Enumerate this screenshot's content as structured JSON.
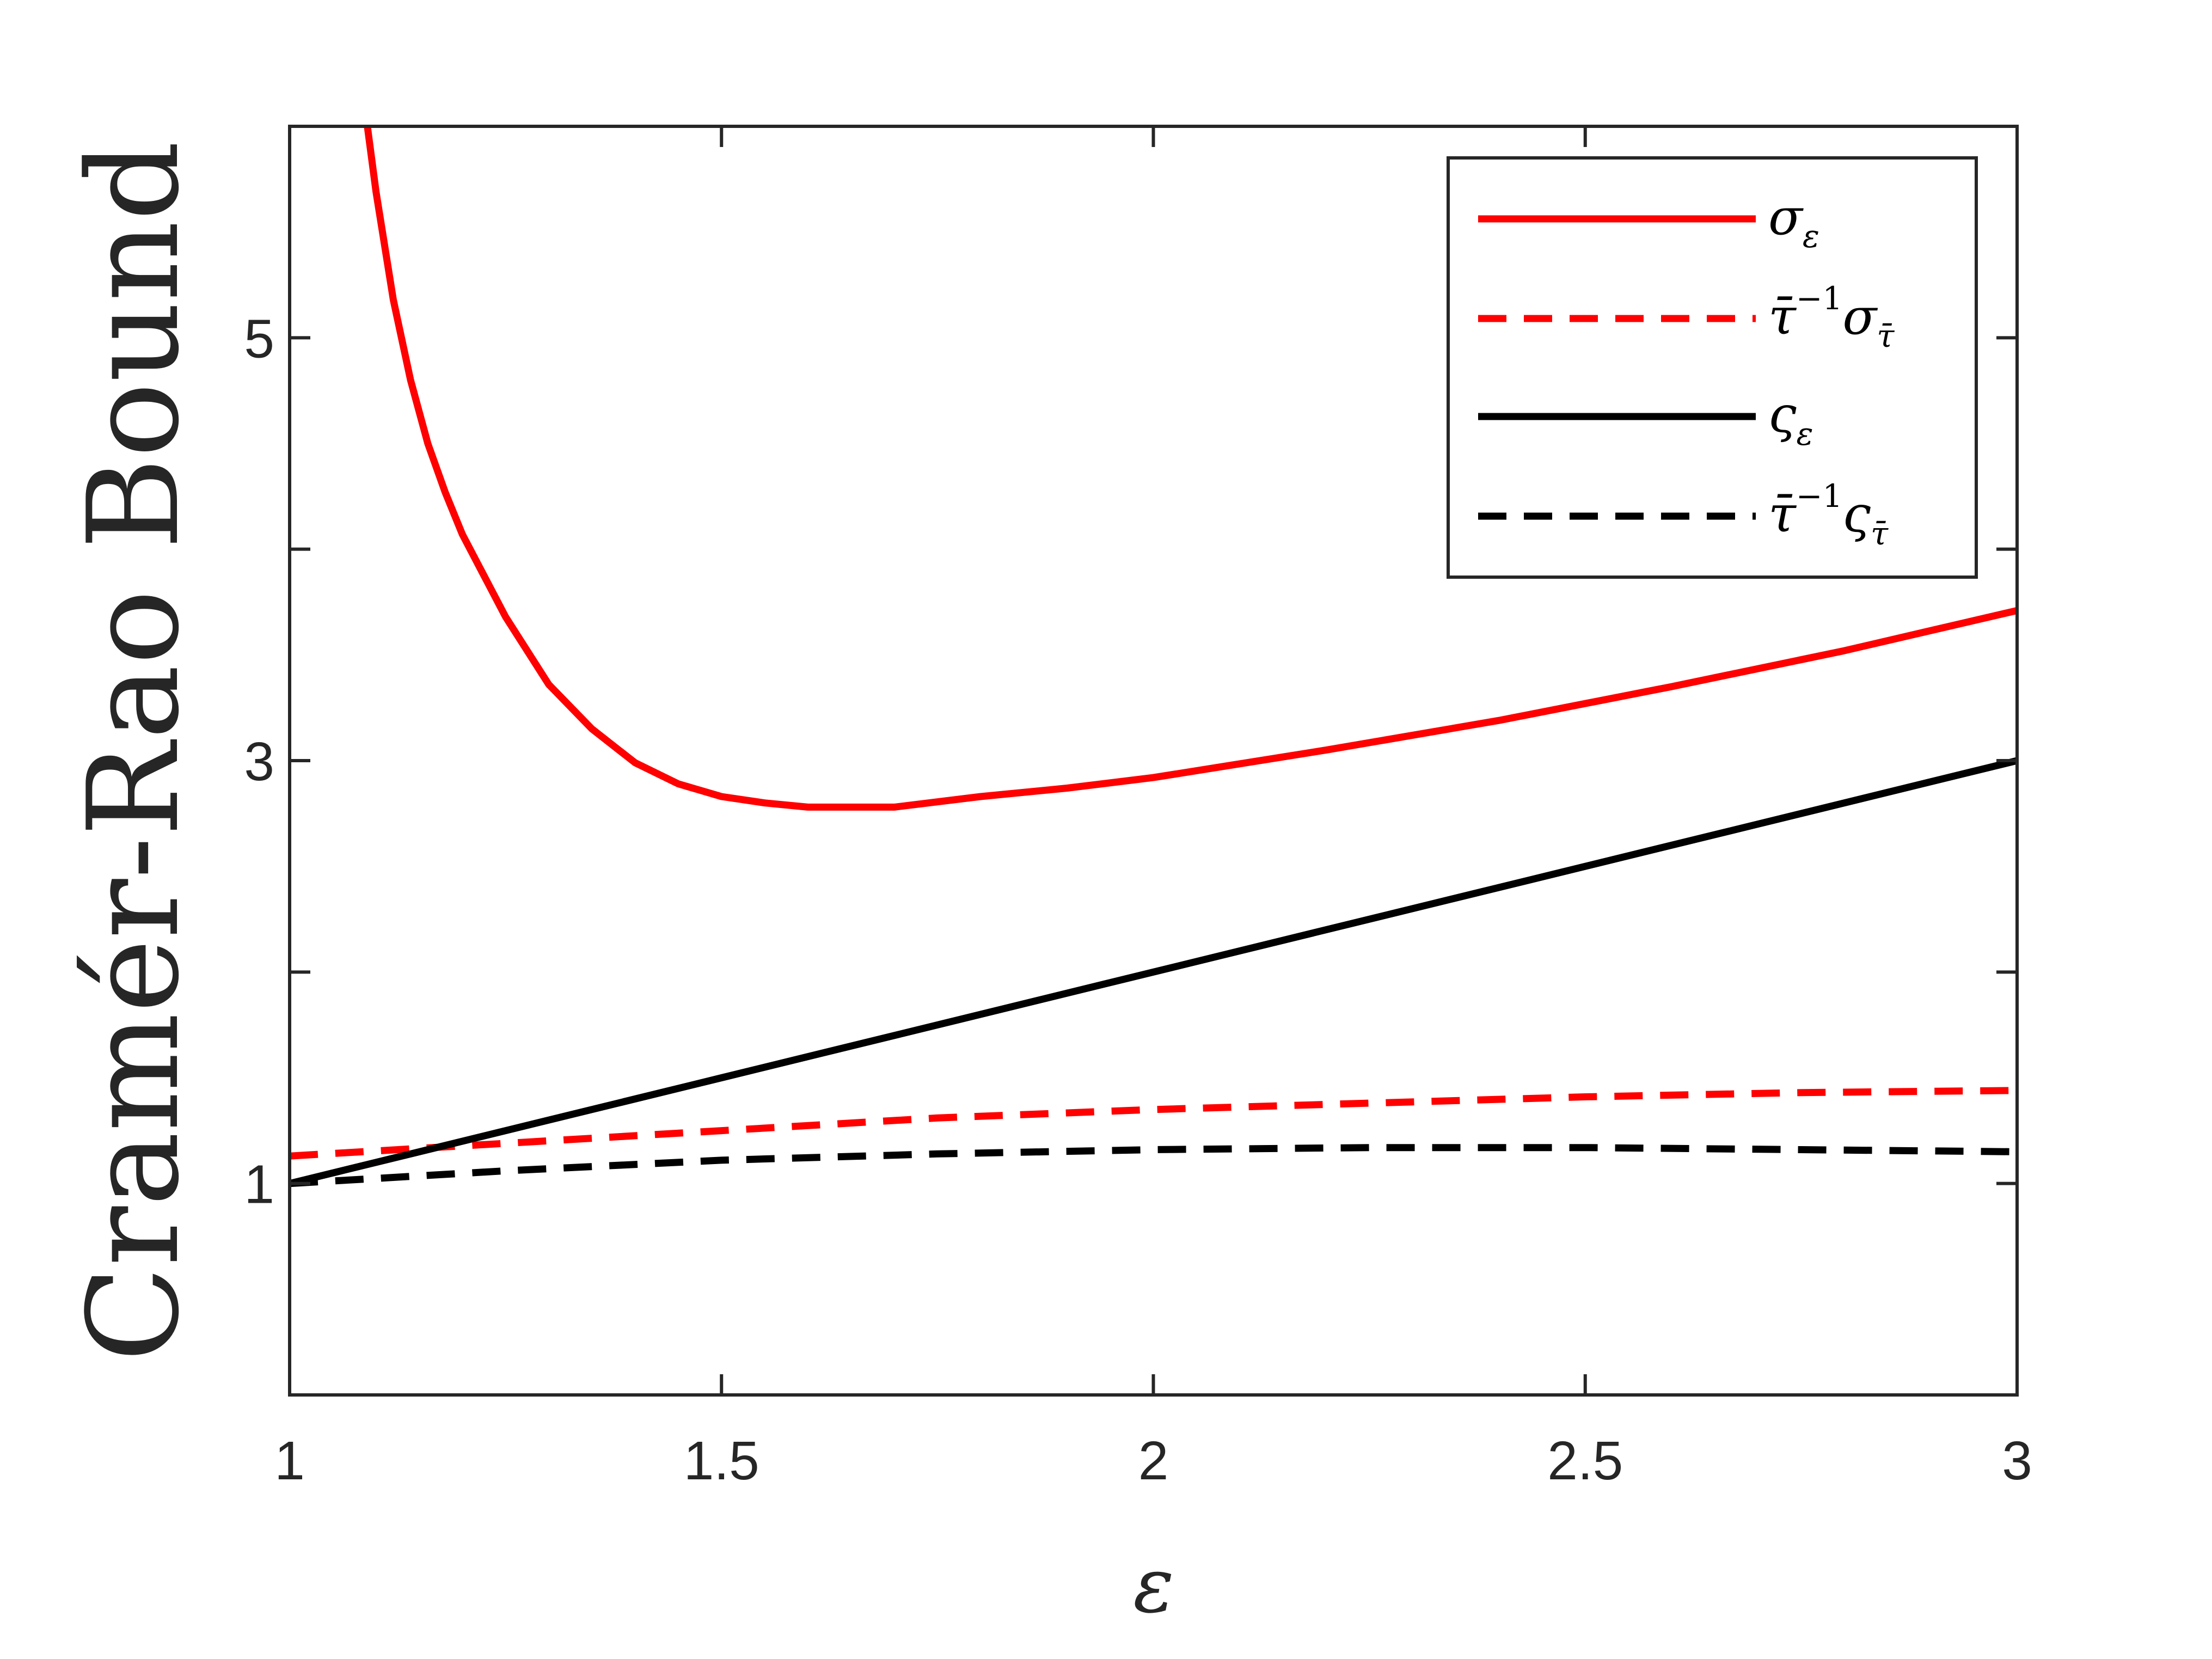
{
  "chart_data": {
    "type": "line",
    "title": "",
    "xlabel": "ε",
    "ylabel": "Cramér-Rao Bound",
    "xlim": [
      1,
      3
    ],
    "ylim": [
      0,
      6
    ],
    "xticks": [
      1,
      1.5,
      2,
      2.5,
      3
    ],
    "xtick_labels": [
      "1",
      "1.5",
      "2",
      "2.5",
      "3"
    ],
    "yticks": [
      1,
      2,
      3,
      4,
      5
    ],
    "ytick_labels": [
      "1",
      "",
      "3",
      "",
      "5"
    ],
    "grid": false,
    "legend_position": "top-right",
    "series": [
      {
        "name": "σ_ε",
        "legend": {
          "base": "σ",
          "sub": "ε",
          "sup": ""
        },
        "color": "#ff0000",
        "dash": "solid",
        "x": [
          1.09,
          1.1,
          1.12,
          1.14,
          1.16,
          1.18,
          1.2,
          1.25,
          1.3,
          1.35,
          1.4,
          1.45,
          1.5,
          1.55,
          1.6,
          1.65,
          1.7,
          1.8,
          1.9,
          2.0,
          2.2,
          2.4,
          2.6,
          2.8,
          3.0
        ],
        "y": [
          6.0,
          5.69,
          5.18,
          4.8,
          4.5,
          4.27,
          4.07,
          3.68,
          3.36,
          3.15,
          2.99,
          2.89,
          2.83,
          2.8,
          2.78,
          2.78,
          2.78,
          2.83,
          2.87,
          2.92,
          3.05,
          3.19,
          3.35,
          3.52,
          3.71
        ]
      },
      {
        "name": "τ̄^{-1}σ_τ̄",
        "legend": {
          "base": "τ̄",
          "sup": "−1",
          "base2": "σ",
          "sub": "τ̄"
        },
        "color": "#ff0000",
        "dash": "dashed",
        "x": [
          1.0,
          1.25,
          1.5,
          1.75,
          2.0,
          2.25,
          2.5,
          2.75,
          3.0
        ],
        "y": [
          1.13,
          1.19,
          1.25,
          1.31,
          1.35,
          1.38,
          1.41,
          1.43,
          1.44
        ]
      },
      {
        "name": "ς_ε",
        "legend": {
          "base": "ς",
          "sub": "ε",
          "sup": ""
        },
        "color": "#000000",
        "dash": "solid",
        "x": [
          1.0,
          1.5,
          2.0,
          2.5,
          3.0
        ],
        "y": [
          1.0,
          1.5,
          2.0,
          2.5,
          3.0
        ]
      },
      {
        "name": "τ̄^{-1}ς_τ̄",
        "legend": {
          "base": "τ̄",
          "sup": "−1",
          "base2": "ς",
          "sub": "τ̄"
        },
        "color": "#000000",
        "dash": "dashed",
        "x": [
          1.0,
          1.25,
          1.5,
          1.75,
          2.0,
          2.25,
          2.5,
          2.75,
          3.0
        ],
        "y": [
          1.0,
          1.06,
          1.11,
          1.14,
          1.16,
          1.17,
          1.17,
          1.16,
          1.15
        ]
      }
    ]
  }
}
